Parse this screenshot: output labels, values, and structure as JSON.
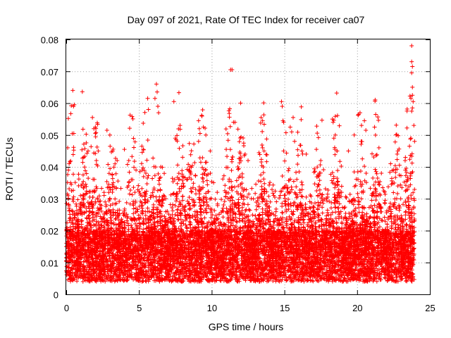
{
  "chart_data": {
    "type": "scatter",
    "title": "Day 097 of 2021, Rate Of TEC Index for receiver ca07",
    "xlabel": "GPS time / hours",
    "ylabel": "ROTI / TECUs",
    "xlim": [
      0,
      25
    ],
    "ylim": [
      0,
      0.08
    ],
    "xticks": [
      0,
      5,
      10,
      15,
      20,
      25
    ],
    "yticks": [
      0,
      0.01,
      0.02,
      0.03,
      0.04,
      0.05,
      0.06,
      0.07,
      0.08
    ],
    "xtick_labels": [
      "0",
      "5",
      "10",
      "15",
      "20",
      "25"
    ],
    "ytick_labels": [
      "0",
      "0.01",
      "0.02",
      "0.03",
      "0.04",
      "0.05",
      "0.06",
      "0.07",
      "0.08"
    ],
    "grid": true,
    "marker": "+",
    "series_color": "#ff0000",
    "points": [
      [
        0.45,
        0.064
      ],
      [
        0.5,
        0.059
      ],
      [
        0.55,
        0.0595
      ],
      [
        0.52,
        0.0505
      ],
      [
        0.1,
        0.046
      ],
      [
        0.2,
        0.041
      ],
      [
        0.15,
        0.039
      ],
      [
        0.3,
        0.035
      ],
      [
        1.2,
        0.043
      ],
      [
        1.5,
        0.045
      ],
      [
        1.8,
        0.0555
      ],
      [
        1.9,
        0.052
      ],
      [
        2.0,
        0.0525
      ],
      [
        2.2,
        0.045
      ],
      [
        2.8,
        0.0515
      ],
      [
        3.0,
        0.05
      ],
      [
        3.2,
        0.045
      ],
      [
        3.5,
        0.042
      ],
      [
        4.0,
        0.0455
      ],
      [
        4.3,
        0.042
      ],
      [
        4.8,
        0.039
      ],
      [
        5.2,
        0.0465
      ],
      [
        5.3,
        0.0455
      ],
      [
        5.6,
        0.0615
      ],
      [
        5.65,
        0.058
      ],
      [
        6.1,
        0.0615
      ],
      [
        6.2,
        0.066
      ],
      [
        6.25,
        0.0635
      ],
      [
        6.3,
        0.059
      ],
      [
        6.35,
        0.057
      ],
      [
        6.5,
        0.04
      ],
      [
        7.4,
        0.0605
      ],
      [
        7.5,
        0.049
      ],
      [
        7.55,
        0.0485
      ],
      [
        8.0,
        0.043
      ],
      [
        8.5,
        0.04
      ],
      [
        9.1,
        0.0545
      ],
      [
        9.15,
        0.052
      ],
      [
        9.2,
        0.0505
      ],
      [
        9.1,
        0.048
      ],
      [
        9.6,
        0.05
      ],
      [
        9.9,
        0.045
      ],
      [
        11.3,
        0.0705
      ],
      [
        11.4,
        0.0705
      ],
      [
        11.5,
        0.054
      ],
      [
        11.6,
        0.054
      ],
      [
        11.0,
        0.0455
      ],
      [
        11.8,
        0.04
      ],
      [
        12.3,
        0.044
      ],
      [
        12.5,
        0.042
      ],
      [
        13.4,
        0.0555
      ],
      [
        13.5,
        0.0545
      ],
      [
        13.5,
        0.046
      ],
      [
        13.6,
        0.045
      ],
      [
        14.8,
        0.0605
      ],
      [
        14.85,
        0.059
      ],
      [
        14.9,
        0.0545
      ],
      [
        14.95,
        0.054
      ],
      [
        15.4,
        0.0525
      ],
      [
        15.5,
        0.051
      ],
      [
        15.6,
        0.0555
      ],
      [
        15.7,
        0.048
      ],
      [
        16.2,
        0.045
      ],
      [
        16.5,
        0.044
      ],
      [
        17.2,
        0.0455
      ],
      [
        17.5,
        0.042
      ],
      [
        18.3,
        0.055
      ],
      [
        18.35,
        0.054
      ],
      [
        18.4,
        0.049
      ],
      [
        18.5,
        0.05
      ],
      [
        19.4,
        0.045
      ],
      [
        19.8,
        0.05
      ],
      [
        20.1,
        0.0565
      ],
      [
        20.2,
        0.057
      ],
      [
        20.3,
        0.053
      ],
      [
        20.5,
        0.0545
      ],
      [
        20.6,
        0.0515
      ],
      [
        21.2,
        0.0525
      ],
      [
        21.5,
        0.046
      ],
      [
        22.3,
        0.041
      ],
      [
        22.8,
        0.045
      ],
      [
        23.3,
        0.042
      ],
      [
        23.6,
        0.0465
      ],
      [
        23.7,
        0.049
      ],
      [
        23.75,
        0.0575
      ],
      [
        23.8,
        0.0585
      ],
      [
        23.85,
        0.0605
      ],
      [
        23.7,
        0.0615
      ],
      [
        23.8,
        0.0625
      ],
      [
        23.8,
        0.065
      ],
      [
        23.75,
        0.0695
      ],
      [
        23.8,
        0.0715
      ],
      [
        23.75,
        0.073
      ],
      [
        23.75,
        0.078
      ],
      [
        23.9,
        0.053
      ],
      [
        23.95,
        0.048
      ]
    ]
  }
}
